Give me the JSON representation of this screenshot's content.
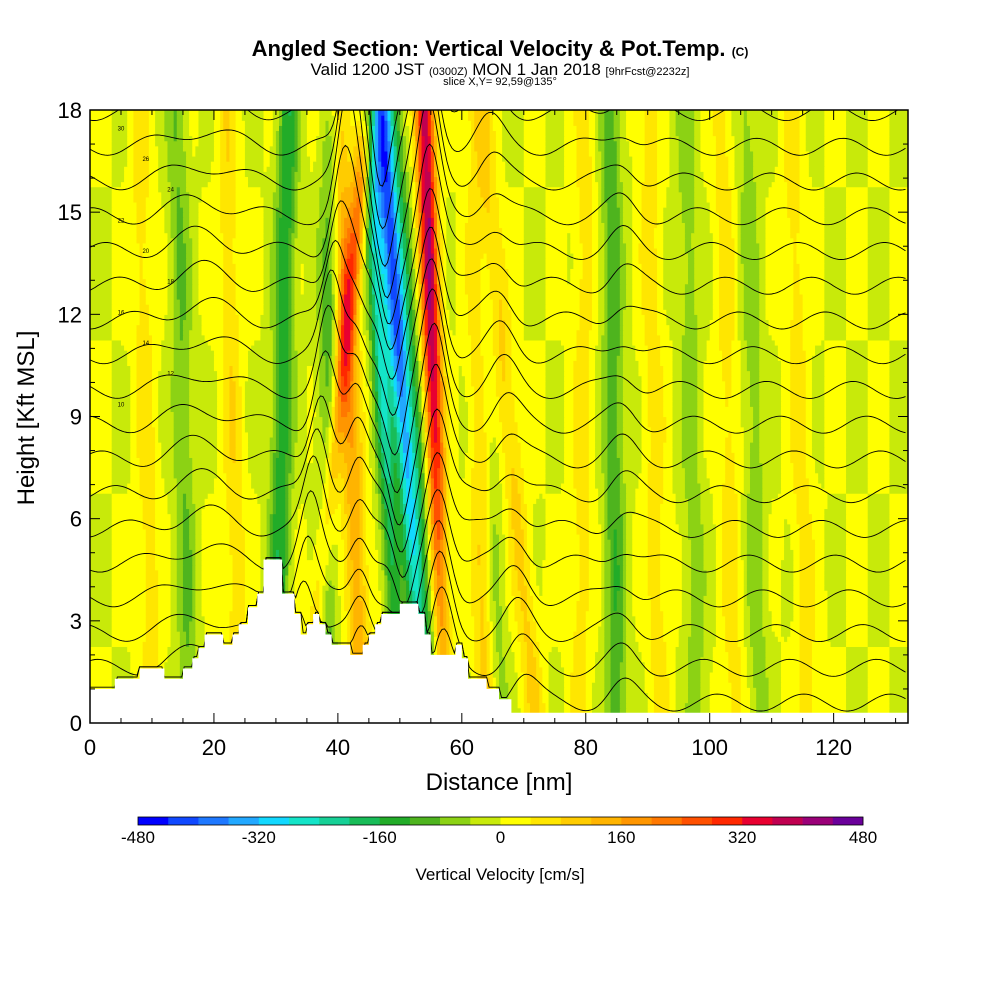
{
  "header": {
    "title": "Angled Section: Vertical Velocity & Pot.Temp.",
    "title_mark": "(C)",
    "valid_prefix": "Valid 1200 JST",
    "valid_z": "(0300Z)",
    "valid_date": "MON 1 Jan 2018",
    "valid_fcst": "[9hrFcst@2232z]",
    "slice": "slice X,Y= 92,59@135°"
  },
  "chart_data": {
    "type": "heatmap",
    "xlabel": "Distance [nm]",
    "ylabel": "Height [Kft MSL]",
    "xlim": [
      0,
      132
    ],
    "ylim": [
      0,
      18
    ],
    "x_ticks": [
      0,
      20,
      40,
      60,
      80,
      100,
      120
    ],
    "y_ticks": [
      0,
      3,
      6,
      9,
      12,
      15,
      18
    ],
    "field": "Vertical Velocity",
    "field_units": "cm/s",
    "velocity_features": [
      {
        "x_at_surface": 30,
        "x_at_top": 32,
        "peak_cm_s": -150
      },
      {
        "x_at_surface": 35,
        "x_at_top": 45,
        "peak_cm_s": 220
      },
      {
        "x_at_surface": 38,
        "x_at_top": 39,
        "peak_cm_s": -110
      },
      {
        "x_at_surface": 44,
        "x_at_top": 40,
        "peak_cm_s": 150
      },
      {
        "x_at_surface": 50,
        "x_at_top": 45,
        "peak_cm_s": -260
      },
      {
        "x_at_surface": 54,
        "x_at_top": 47,
        "peak_cm_s": -380
      },
      {
        "x_at_surface": 57,
        "x_at_top": 54,
        "peak_cm_s": 400
      },
      {
        "x_at_surface": 56,
        "x_at_top": 49,
        "peak_cm_s": -120
      },
      {
        "x_at_surface": 64,
        "x_at_top": 62,
        "peak_cm_s": 110
      },
      {
        "x_at_surface": 72,
        "x_at_top": 63,
        "peak_cm_s": 90
      },
      {
        "x_at_surface": 85,
        "x_at_top": 84,
        "peak_cm_s": -110
      },
      {
        "x_at_surface": 66,
        "x_at_top": 62,
        "peak_cm_s": -70
      },
      {
        "x_at_surface": 79,
        "x_at_top": 80,
        "peak_cm_s": 60
      },
      {
        "x_at_surface": 92,
        "x_at_top": 90,
        "peak_cm_s": 60
      },
      {
        "x_at_surface": 98,
        "x_at_top": 96,
        "peak_cm_s": -60
      },
      {
        "x_at_surface": 104,
        "x_at_top": 102,
        "peak_cm_s": 60
      },
      {
        "x_at_surface": 108,
        "x_at_top": 106,
        "peak_cm_s": -60
      },
      {
        "x_at_surface": 116,
        "x_at_top": 113,
        "peak_cm_s": 60
      },
      {
        "x_at_surface": 16,
        "x_at_top": 14,
        "peak_cm_s": -80
      },
      {
        "x_at_surface": 24,
        "x_at_top": 22,
        "peak_cm_s": 70
      },
      {
        "x_at_surface": 10,
        "x_at_top": 8,
        "peak_cm_s": 60
      }
    ],
    "terrain_kft": [
      [
        0,
        1.0
      ],
      [
        4,
        1.0
      ],
      [
        4,
        1.3
      ],
      [
        8,
        1.3
      ],
      [
        8,
        1.6
      ],
      [
        12,
        1.6
      ],
      [
        12,
        1.3
      ],
      [
        15,
        1.3
      ],
      [
        15,
        1.6
      ],
      [
        16.5,
        1.6
      ],
      [
        16.5,
        1.9
      ],
      [
        17.5,
        1.9
      ],
      [
        17.5,
        2.2
      ],
      [
        18.5,
        2.2
      ],
      [
        18.5,
        2.6
      ],
      [
        21.5,
        2.6
      ],
      [
        21.5,
        2.3
      ],
      [
        23,
        2.3
      ],
      [
        23,
        2.6
      ],
      [
        24,
        2.6
      ],
      [
        24,
        2.9
      ],
      [
        25.5,
        2.9
      ],
      [
        25.5,
        3.4
      ],
      [
        27,
        3.4
      ],
      [
        27,
        3.8
      ],
      [
        28,
        3.8
      ],
      [
        28,
        4.8
      ],
      [
        31,
        4.8
      ],
      [
        31,
        3.8
      ],
      [
        33,
        3.8
      ],
      [
        33,
        3.2
      ],
      [
        34,
        3.2
      ],
      [
        34,
        2.6
      ],
      [
        35,
        2.6
      ],
      [
        35,
        2.9
      ],
      [
        36,
        2.9
      ],
      [
        36,
        3.2
      ],
      [
        37,
        3.2
      ],
      [
        37,
        2.9
      ],
      [
        38,
        2.9
      ],
      [
        38,
        2.6
      ],
      [
        39,
        2.6
      ],
      [
        39,
        2.3
      ],
      [
        42,
        2.3
      ],
      [
        42,
        2.0
      ],
      [
        44,
        2.0
      ],
      [
        44,
        2.3
      ],
      [
        45,
        2.3
      ],
      [
        45,
        2.6
      ],
      [
        46,
        2.6
      ],
      [
        46,
        2.9
      ],
      [
        47,
        2.9
      ],
      [
        47,
        3.2
      ],
      [
        50,
        3.2
      ],
      [
        50,
        3.5
      ],
      [
        53,
        3.5
      ],
      [
        53,
        3.2
      ],
      [
        54,
        3.2
      ],
      [
        54,
        2.6
      ],
      [
        55,
        2.6
      ],
      [
        55,
        2.0
      ],
      [
        59,
        2.0
      ],
      [
        59,
        2.3
      ],
      [
        60,
        2.3
      ],
      [
        60,
        1.9
      ],
      [
        61,
        1.9
      ],
      [
        61,
        1.3
      ],
      [
        64,
        1.3
      ],
      [
        64,
        1.0
      ],
      [
        66,
        1.0
      ],
      [
        66,
        0.7
      ],
      [
        68,
        0.7
      ],
      [
        68,
        0.3
      ],
      [
        74,
        0.3
      ],
      [
        132,
        0.3
      ]
    ],
    "theta_contours_c": [
      8,
      10,
      12,
      14,
      16,
      18,
      20,
      22,
      24,
      26,
      28,
      30,
      32,
      34,
      36,
      38,
      40,
      42
    ],
    "theta_contour_labels": [
      "30",
      "26",
      "24",
      "22",
      "20",
      "18",
      "16",
      "14",
      "12",
      "10"
    ],
    "colorbar": {
      "min": -480,
      "max": 480,
      "step": 40,
      "tick_labels": [
        "-480",
        "-320",
        "-160",
        "0",
        "160",
        "320",
        "480"
      ],
      "label": "Vertical Velocity [cm/s]",
      "colors": [
        "#0000ff",
        "#1048ff",
        "#1e78ff",
        "#22a8ff",
        "#12d8ff",
        "#14e4c8",
        "#16d096",
        "#18bc58",
        "#22ac28",
        "#4eb41e",
        "#8cd214",
        "#c8ea0a",
        "#ffff00",
        "#ffe600",
        "#ffcc00",
        "#ffb400",
        "#ff9600",
        "#ff7800",
        "#ff5000",
        "#ff2800",
        "#e80030",
        "#c00050",
        "#9a0078",
        "#6a009a"
      ]
    }
  }
}
